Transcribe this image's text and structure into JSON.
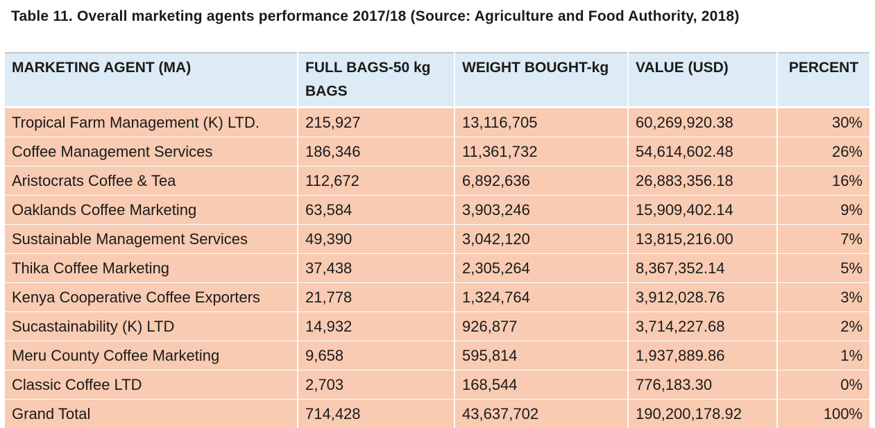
{
  "caption": "Table 11. Overall marketing agents performance 2017/18 (Source: Agriculture and Food Authority, 2018)",
  "headers": {
    "agent": "MARKETING AGENT (MA)",
    "bags": "FULL BAGS-50 kg BAGS",
    "weight": "WEIGHT BOUGHT-kg",
    "value": "VALUE (USD)",
    "percent": "PERCENT"
  },
  "rows": [
    {
      "agent": "Tropical Farm Management (K) LTD.",
      "bags": "215,927",
      "weight": "13,116,705",
      "value": "60,269,920.38",
      "percent": "30%"
    },
    {
      "agent": "Coffee Management Services",
      "bags": "186,346",
      "weight": "11,361,732",
      "value": "54,614,602.48",
      "percent": "26%"
    },
    {
      "agent": "Aristocrats Coffee & Tea",
      "bags": "112,672",
      "weight": "6,892,636",
      "value": "26,883,356.18",
      "percent": "16%"
    },
    {
      "agent": "Oaklands Coffee Marketing",
      "bags": "63,584",
      "weight": "3,903,246",
      "value": "15,909,402.14",
      "percent": "9%"
    },
    {
      "agent": "Sustainable Management Services",
      "bags": "49,390",
      "weight": "3,042,120",
      "value": "13,815,216.00",
      "percent": "7%"
    },
    {
      "agent": "Thika Coffee Marketing",
      "bags": "37,438",
      "weight": "2,305,264",
      "value": "8,367,352.14",
      "percent": "5%"
    },
    {
      "agent": "Kenya Cooperative Coffee Exporters",
      "bags": "21,778",
      "weight": "1,324,764",
      "value": "3,912,028.76",
      "percent": "3%"
    },
    {
      "agent": "Sucastainability (K) LTD",
      "bags": "14,932",
      "weight": "926,877",
      "value": "3,714,227.68",
      "percent": "2%"
    },
    {
      "agent": "Meru County Coffee Marketing",
      "bags": "9,658",
      "weight": "595,814",
      "value": "1,937,889.86",
      "percent": "1%"
    },
    {
      "agent": "Classic Coffee LTD",
      "bags": "2,703",
      "weight": "168,544",
      "value": "776,183.30",
      "percent": "0%"
    },
    {
      "agent": "Grand Total",
      "bags": "714,428",
      "weight": "43,637,702",
      "value": "190,200,178.92",
      "percent": "100%"
    }
  ]
}
